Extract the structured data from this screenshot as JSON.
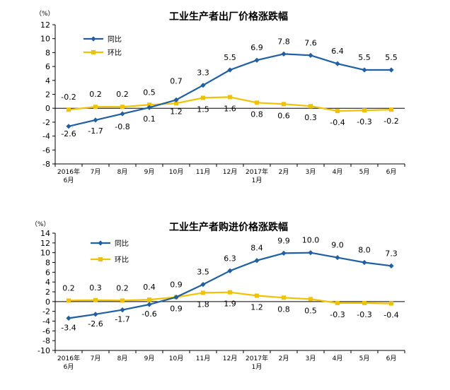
{
  "chart_data": [
    {
      "type": "line",
      "title": "工业生产者出厂价格涨跌幅",
      "unit": "（%）",
      "ylim": [
        -8,
        12
      ],
      "yticks": [
        12,
        10,
        8,
        6,
        4,
        2,
        0,
        -2,
        -4,
        -6,
        -8
      ],
      "grid": false,
      "legend_position": "top-left",
      "categories": [
        [
          "2016年",
          "6月"
        ],
        [
          "7月"
        ],
        [
          "8月"
        ],
        [
          "9月"
        ],
        [
          "10月"
        ],
        [
          "11月"
        ],
        [
          "12月"
        ],
        [
          "2017年",
          "1月"
        ],
        [
          "2月"
        ],
        [
          "3月"
        ],
        [
          "4月"
        ],
        [
          "5月"
        ],
        [
          "6月"
        ]
      ],
      "series": [
        {
          "name": "同比",
          "color": "#1f5fa6",
          "marker": "diamond",
          "values": [
            -2.6,
            -1.7,
            -0.8,
            0.1,
            1.2,
            3.3,
            5.5,
            6.9,
            7.8,
            7.6,
            6.4,
            5.5,
            5.5
          ],
          "labels": [
            "-2.6",
            "-1.7",
            "-0.8",
            "0.1",
            "1.2",
            "3.3",
            "5.5",
            "6.9",
            "7.8",
            "7.6",
            "6.4",
            "5.5",
            "5.5"
          ]
        },
        {
          "name": "环比",
          "color": "#f2c200",
          "marker": "square",
          "values": [
            -0.2,
            0.2,
            0.2,
            0.5,
            0.7,
            1.5,
            1.6,
            0.8,
            0.6,
            0.3,
            -0.4,
            -0.3,
            -0.2
          ],
          "labels": [
            "-0.2",
            "0.2",
            "0.2",
            "0.5",
            "0.7",
            "1.5",
            "1.6",
            "0.8",
            "0.6",
            "0.3",
            "-0.4",
            "-0.3",
            "-0.2"
          ]
        }
      ]
    },
    {
      "type": "line",
      "title": "工业生产者购进价格涨跌幅",
      "unit": "（%）",
      "ylim": [
        -10,
        14
      ],
      "yticks": [
        14,
        12,
        10,
        8,
        6,
        4,
        2,
        0,
        -2,
        -4,
        -6,
        -8,
        -10
      ],
      "grid": false,
      "legend_position": "top-left",
      "categories": [
        [
          "2016年",
          "6月"
        ],
        [
          "7月"
        ],
        [
          "8月"
        ],
        [
          "9月"
        ],
        [
          "10月"
        ],
        [
          "11月"
        ],
        [
          "12月"
        ],
        [
          "2017年",
          "1月"
        ],
        [
          "2月"
        ],
        [
          "3月"
        ],
        [
          "4月"
        ],
        [
          "5月"
        ],
        [
          "6月"
        ]
      ],
      "series": [
        {
          "name": "同比",
          "color": "#1f5fa6",
          "marker": "diamond",
          "values": [
            -3.4,
            -2.6,
            -1.7,
            -0.6,
            0.9,
            3.5,
            6.3,
            8.4,
            9.9,
            10.0,
            9.0,
            8.0,
            7.3
          ],
          "labels": [
            "-3.4",
            "-2.6",
            "-1.7",
            "-0.6",
            "0.9",
            "3.5",
            "6.3",
            "8.4",
            "9.9",
            "10.0",
            "9.0",
            "8.0",
            "7.3"
          ]
        },
        {
          "name": "环比",
          "color": "#f2c200",
          "marker": "square",
          "values": [
            0.2,
            0.3,
            0.2,
            0.4,
            0.9,
            1.8,
            1.9,
            1.2,
            0.8,
            0.5,
            -0.3,
            -0.3,
            -0.4
          ],
          "labels": [
            "0.2",
            "0.3",
            "0.2",
            "0.4",
            "0.9",
            "1.8",
            "1.9",
            "1.2",
            "0.8",
            "0.5",
            "-0.3",
            "-0.3",
            "-0.4"
          ]
        }
      ]
    }
  ]
}
